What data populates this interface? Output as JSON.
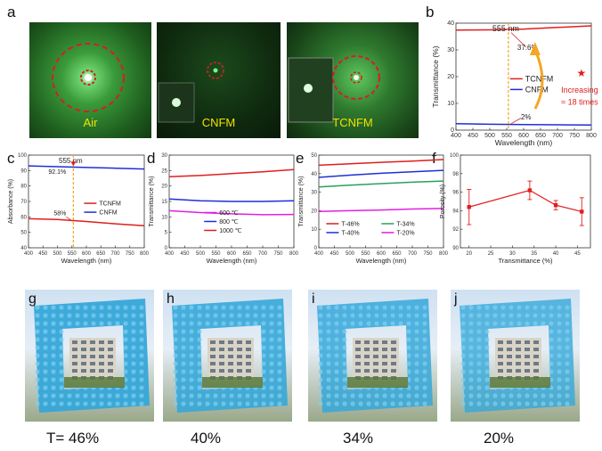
{
  "panels": {
    "a": {
      "label": "a",
      "captions": [
        "Air",
        "CNFM",
        "TCNFM"
      ]
    },
    "b": {
      "label": "b"
    },
    "c": {
      "label": "c"
    },
    "d": {
      "label": "d"
    },
    "e": {
      "label": "e"
    },
    "f": {
      "label": "f"
    },
    "g": {
      "label": "g",
      "caption": "T= 46%"
    },
    "h": {
      "label": "h",
      "caption": "40%"
    },
    "i": {
      "label": "i",
      "caption": "34%"
    },
    "j": {
      "label": "j",
      "caption": "20%"
    }
  },
  "colors": {
    "red": "#e01e1e",
    "blue": "#1f2fd6",
    "green": "#2aa05a",
    "magenta": "#e020e0",
    "orange": "#f5a623",
    "tile": "#36a7d8"
  },
  "chart_data": [
    {
      "id": "b",
      "type": "line",
      "xlabel": "Wavelength (nm)",
      "ylabel": "Transmittance (%)",
      "xlim": [
        400,
        800
      ],
      "ylim": [
        0,
        40
      ],
      "xticks": [
        400,
        450,
        500,
        550,
        600,
        650,
        700,
        750,
        800
      ],
      "yticks": [
        0,
        10,
        20,
        30,
        40
      ],
      "series": [
        {
          "name": "TCNFM",
          "color": "#e01e1e",
          "x": [
            400,
            500,
            600,
            700,
            800
          ],
          "values": [
            37.4,
            37.5,
            37.8,
            38.4,
            39.0
          ]
        },
        {
          "name": "CNFM",
          "color": "#1f2fd6",
          "x": [
            400,
            500,
            600,
            700,
            800
          ],
          "values": [
            2.4,
            2.2,
            2.1,
            2.0,
            1.9
          ]
        }
      ],
      "marker_text": "555 nm",
      "marker_x": 555,
      "annotations": {
        "top": "37.6%",
        "bottom": "2%",
        "increase_1": "Increasing",
        "increase_2": "≈ 18 times"
      }
    },
    {
      "id": "c",
      "type": "line",
      "xlabel": "Wavelength (nm)",
      "ylabel": "Absorbance (%)",
      "xlim": [
        400,
        800
      ],
      "ylim": [
        40,
        100
      ],
      "xticks": [
        400,
        450,
        500,
        550,
        600,
        650,
        700,
        750,
        800
      ],
      "yticks": [
        40,
        50,
        60,
        70,
        80,
        90,
        100
      ],
      "series": [
        {
          "name": "TCNFM",
          "color": "#e01e1e",
          "x": [
            400,
            500,
            600,
            700,
            800
          ],
          "values": [
            58.8,
            58.3,
            57.0,
            55.5,
            54.3
          ]
        },
        {
          "name": "CNFM",
          "color": "#1f2fd6",
          "x": [
            400,
            500,
            600,
            700,
            800
          ],
          "values": [
            93.0,
            92.5,
            92.0,
            91.5,
            91.0
          ]
        }
      ],
      "marker_text": "555 nm",
      "marker_x": 555,
      "annotations": {
        "top": "92.1%",
        "bottom": "58%"
      }
    },
    {
      "id": "d",
      "type": "line",
      "xlabel": "Wavelength (nm)",
      "ylabel": "Transmittance (%)",
      "xlim": [
        400,
        800
      ],
      "ylim": [
        0,
        30
      ],
      "xticks": [
        400,
        450,
        500,
        550,
        600,
        650,
        700,
        750,
        800
      ],
      "yticks": [
        0,
        5,
        10,
        15,
        20,
        25,
        30
      ],
      "series": [
        {
          "name": "600 ℃",
          "color": "#e020e0",
          "x": [
            400,
            500,
            600,
            700,
            800
          ],
          "values": [
            12.0,
            11.4,
            11.0,
            10.7,
            10.8
          ]
        },
        {
          "name": "800 ℃",
          "color": "#1f2fd6",
          "x": [
            400,
            500,
            600,
            700,
            800
          ],
          "values": [
            15.8,
            15.2,
            15.0,
            15.0,
            15.2
          ]
        },
        {
          "name": "1000 ℃",
          "color": "#e01e1e",
          "x": [
            400,
            500,
            600,
            700,
            800
          ],
          "values": [
            23.0,
            23.4,
            24.0,
            24.6,
            25.3
          ]
        }
      ]
    },
    {
      "id": "e",
      "type": "line",
      "xlabel": "Wavelength (nm)",
      "ylabel": "Transmittance (%)",
      "xlim": [
        400,
        800
      ],
      "ylim": [
        0,
        50
      ],
      "xticks": [
        400,
        450,
        500,
        550,
        600,
        650,
        700,
        750,
        800
      ],
      "yticks": [
        0,
        10,
        20,
        30,
        40,
        50
      ],
      "series": [
        {
          "name": "T-46%",
          "color": "#e01e1e",
          "x": [
            400,
            500,
            600,
            700,
            800
          ],
          "values": [
            44.5,
            45.3,
            46.1,
            46.8,
            47.6
          ]
        },
        {
          "name": "T-40%",
          "color": "#1f2fd6",
          "x": [
            400,
            500,
            600,
            700,
            800
          ],
          "values": [
            38.0,
            39.2,
            40.2,
            41.0,
            41.8
          ]
        },
        {
          "name": "T-34%",
          "color": "#2aa05a",
          "x": [
            400,
            500,
            600,
            700,
            800
          ],
          "values": [
            32.8,
            33.8,
            34.6,
            35.4,
            36.0
          ]
        },
        {
          "name": "T-20%",
          "color": "#e020e0",
          "x": [
            400,
            500,
            600,
            700,
            800
          ],
          "values": [
            19.6,
            20.0,
            20.4,
            20.9,
            21.2
          ]
        }
      ]
    },
    {
      "id": "f",
      "type": "line",
      "xlabel": "Transmittance (%)",
      "ylabel": "Porosity (%)",
      "xlim": [
        18,
        48
      ],
      "ylim": [
        90,
        100
      ],
      "xticks": [
        20,
        25,
        30,
        35,
        40,
        45
      ],
      "yticks": [
        90,
        92,
        94,
        96,
        98,
        100
      ],
      "series": [
        {
          "name": "Porosity",
          "color": "#e01e1e",
          "x": [
            20,
            34,
            40,
            46
          ],
          "values": [
            94.4,
            96.2,
            94.6,
            93.9
          ],
          "err": [
            1.9,
            1.0,
            0.5,
            1.5
          ]
        }
      ]
    }
  ]
}
